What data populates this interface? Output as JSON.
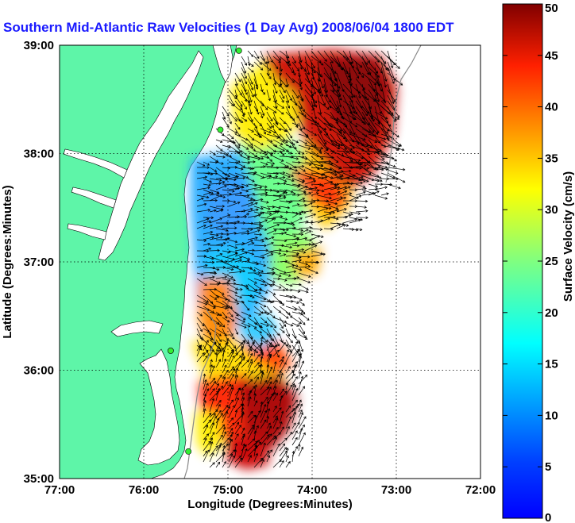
{
  "chart_data": {
    "type": "map",
    "title": "Southern Mid-Atlantic Raw Velocities (1 Day Avg) 2008/06/04 1800 EDT",
    "xlabel": "Longitude (Degrees:Minutes)",
    "ylabel": "Latitude (Degrees:Minutes)",
    "x_ticks": [
      "77:00",
      "76:00",
      "75:00",
      "74:00",
      "73:00",
      "72:00"
    ],
    "y_ticks": [
      "35:00",
      "36:00",
      "37:00",
      "38:00",
      "39:00"
    ],
    "x_range_deg_west": [
      77,
      72
    ],
    "y_range_deg_north": [
      35,
      39
    ],
    "grid": "dotted",
    "colorbar": {
      "label": "Surface Velocity (cm/s)",
      "min": 0,
      "max": 50,
      "ticks": [
        "0",
        "5",
        "10",
        "15",
        "20",
        "25",
        "30",
        "35",
        "40",
        "45",
        "50"
      ],
      "colormap": "jet"
    },
    "land_color": "#5ef5a8",
    "station_color": "#33ee33",
    "stations": [
      {
        "lon": -74.87,
        "lat": 38.95
      },
      {
        "lon": -75.09,
        "lat": 38.22
      },
      {
        "lon": -75.68,
        "lat": 36.18
      },
      {
        "lon": -75.47,
        "lat": 35.25
      }
    ]
  }
}
